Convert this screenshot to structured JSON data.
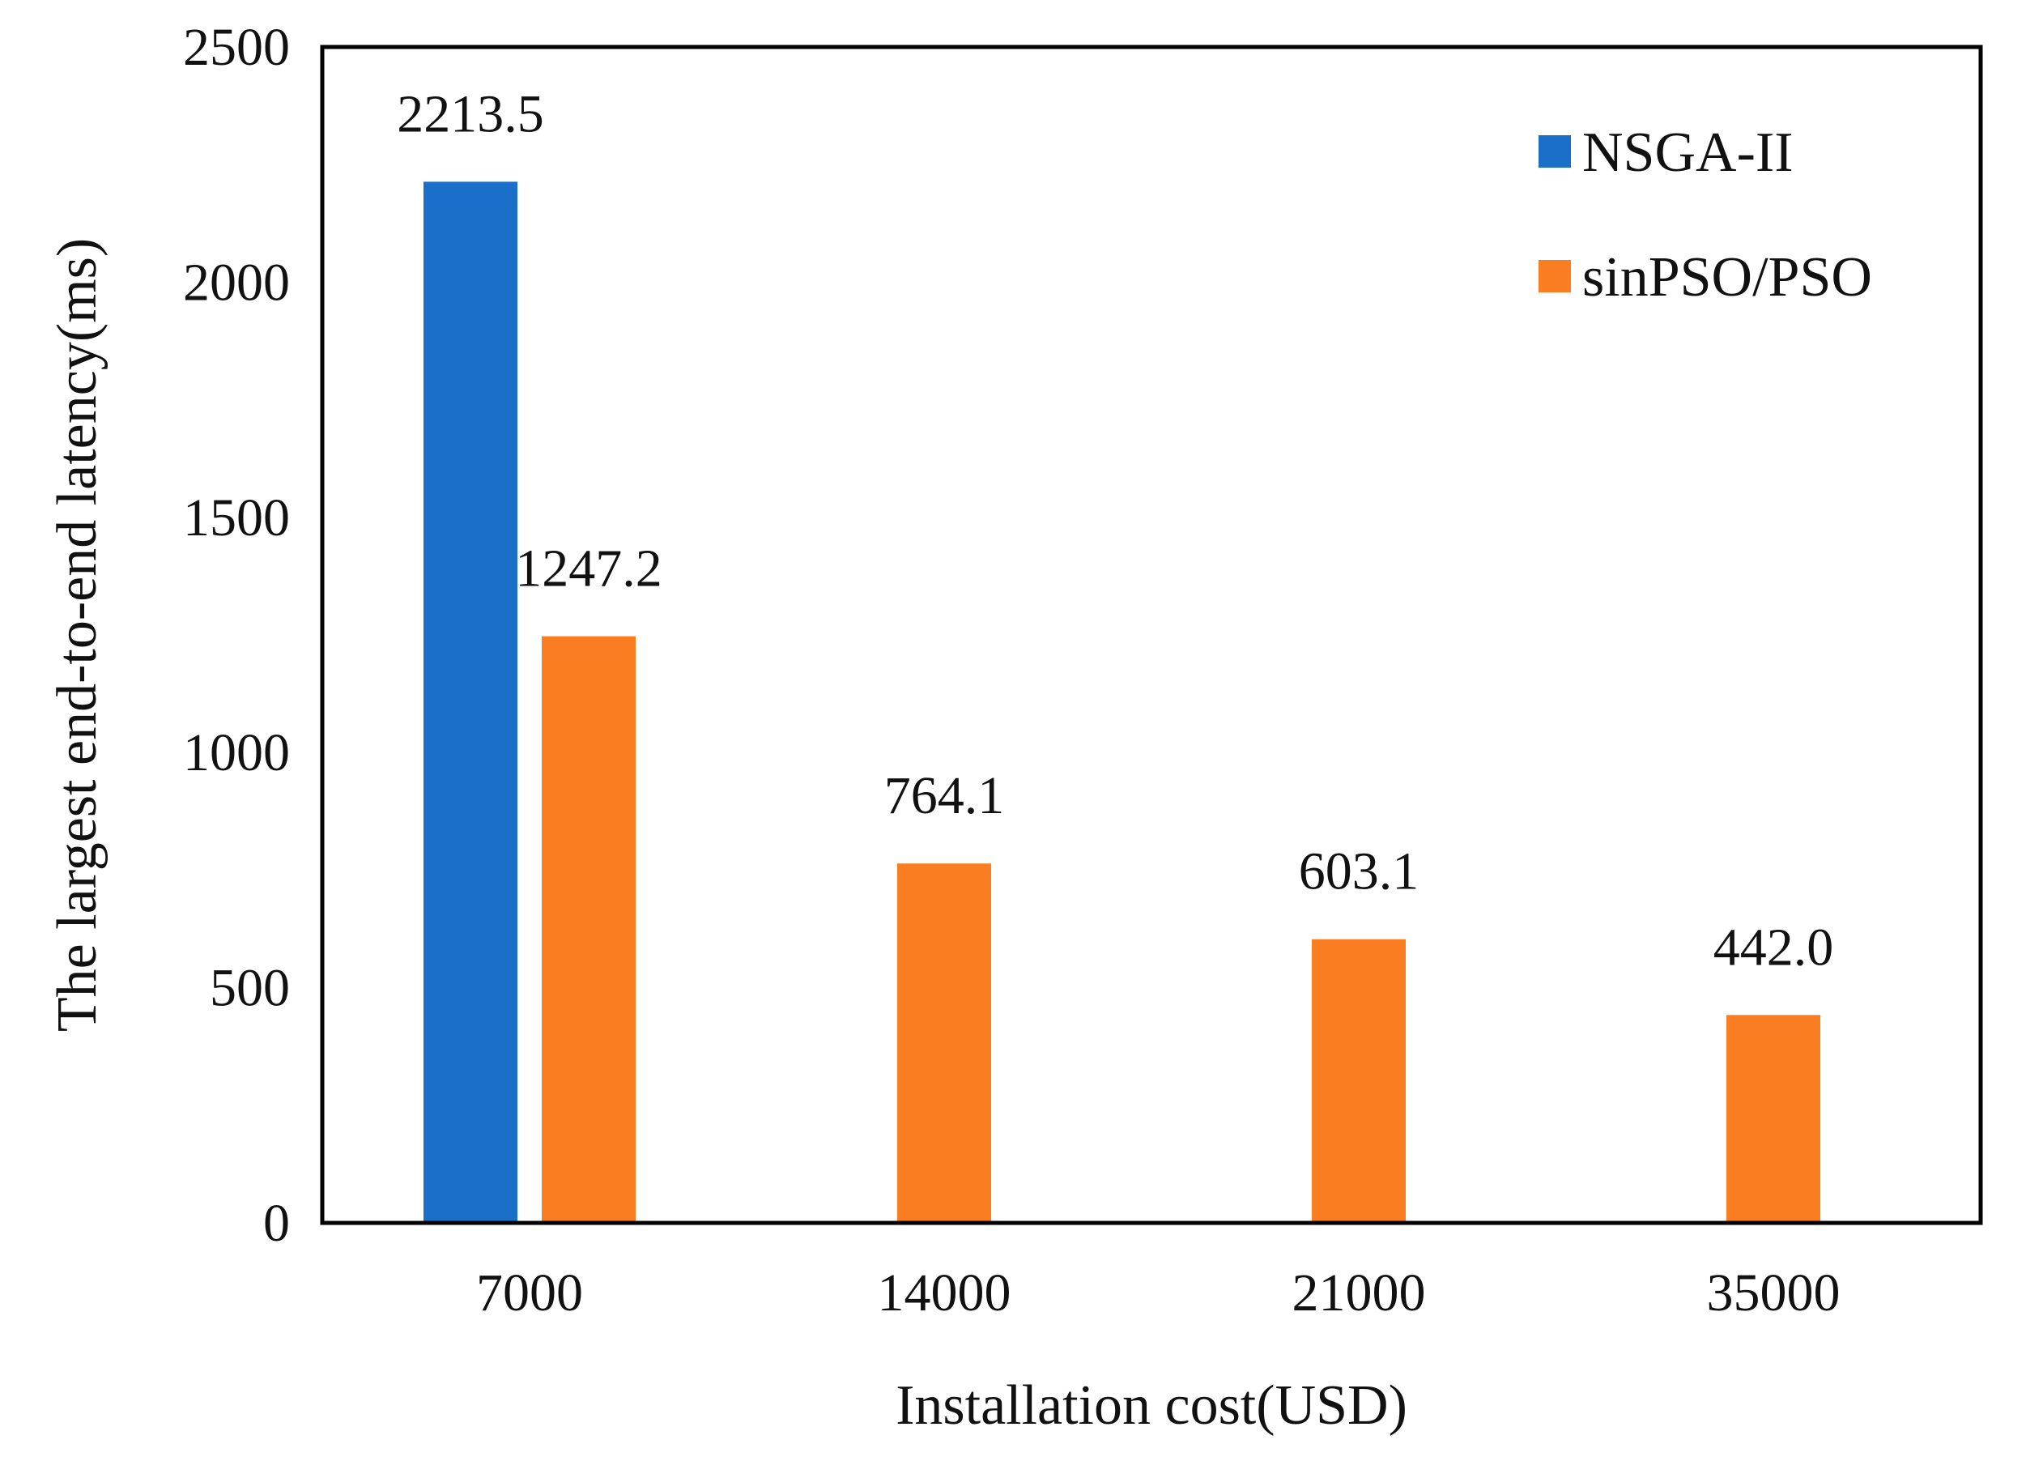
{
  "chart_data": {
    "type": "bar",
    "title": "",
    "xlabel": "Installation cost(USD)",
    "ylabel": "The largest end-to-end latency(ms)",
    "categories": [
      "7000",
      "14000",
      "21000",
      "35000"
    ],
    "series": [
      {
        "name": "NSGA-II",
        "color": "#1a6fc9",
        "values": [
          2213.5,
          null,
          null,
          null
        ]
      },
      {
        "name": "sinPSO/PSO",
        "color": "#fa7d22",
        "values": [
          1247.2,
          764.1,
          603.1,
          442.0
        ]
      }
    ],
    "data_labels": [
      {
        "series": 0,
        "index": 0,
        "text": "2213.5"
      },
      {
        "series": 1,
        "index": 0,
        "text": "1247.2"
      },
      {
        "series": 1,
        "index": 1,
        "text": "764.1"
      },
      {
        "series": 1,
        "index": 2,
        "text": "603.1"
      },
      {
        "series": 1,
        "index": 3,
        "text": "442.0"
      }
    ],
    "ylim": [
      0,
      2500
    ],
    "yticks": [
      0,
      500,
      1000,
      1500,
      2000,
      2500
    ],
    "grid": false,
    "legend_position": "top-right"
  }
}
